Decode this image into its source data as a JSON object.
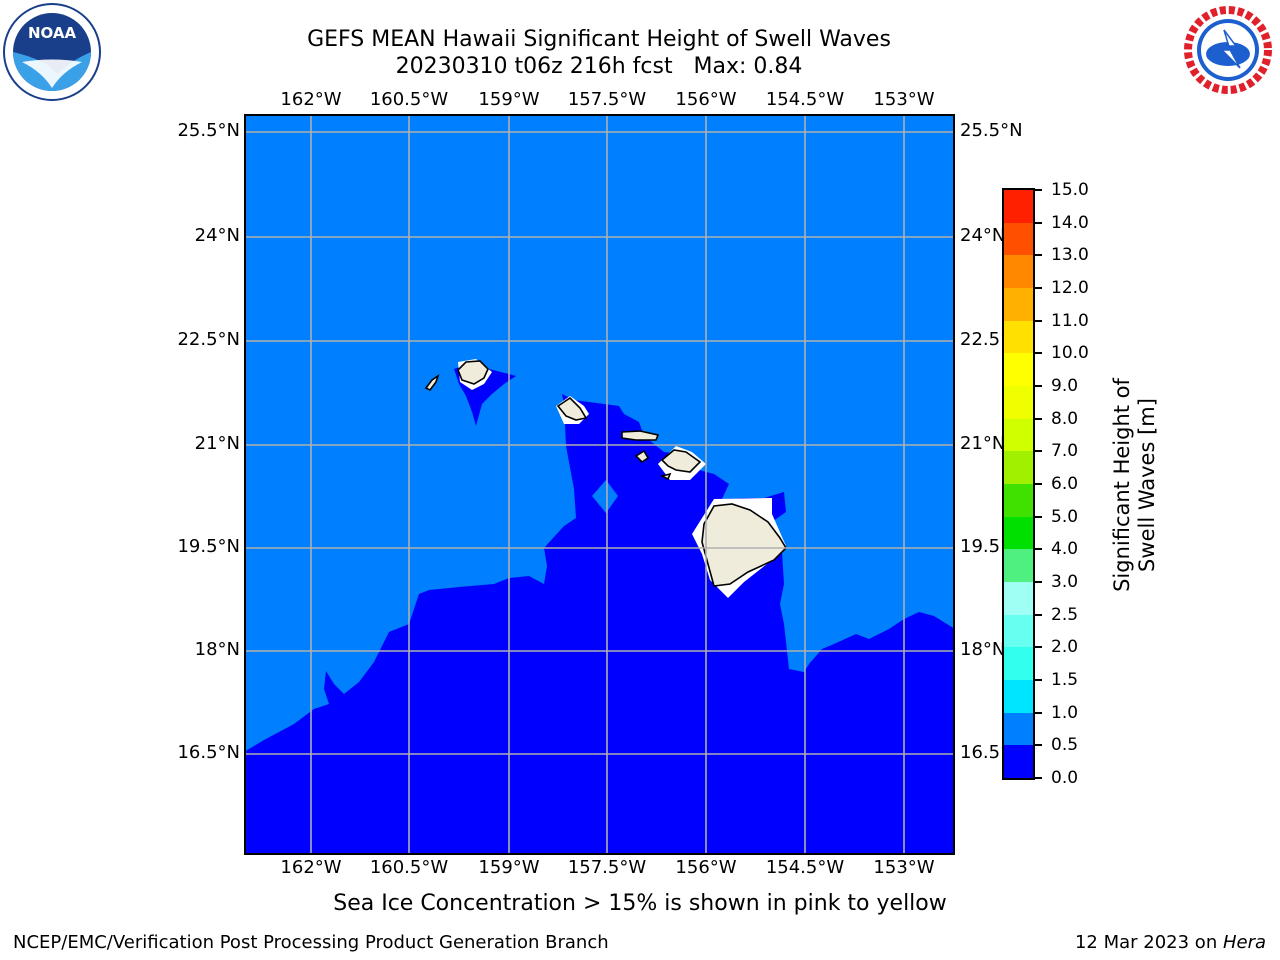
{
  "title": {
    "line1": "GEFS MEAN Hawaii Significant Height of Swell Waves",
    "line2": "20230310 t06z 216h fcst   Max: 0.84"
  },
  "map": {
    "lon_labels": [
      "162°W",
      "160.5°W",
      "159°W",
      "157.5°W",
      "156°W",
      "154.5°W",
      "153°W"
    ],
    "lat_labels": [
      "25.5°N",
      "24°N",
      "22.5°N",
      "21°N",
      "19.5°N",
      "18°N",
      "16.5°N"
    ],
    "colors": {
      "ocean_low": "#0000ff",
      "ocean_mid": "#0080ff",
      "land": "#f0ecdc",
      "grid": "#b0b0b0"
    }
  },
  "colorbar": {
    "label": "Significant Height of Swell Waves [m]",
    "ticks": [
      "0.0",
      "0.5",
      "1.0",
      "1.5",
      "2.0",
      "2.5",
      "3.0",
      "4.0",
      "5.0",
      "6.0",
      "7.0",
      "8.0",
      "9.0",
      "10.0",
      "11.0",
      "12.0",
      "13.0",
      "14.0",
      "15.0"
    ],
    "colors": [
      "#0000ff",
      "#0080ff",
      "#00e5ff",
      "#33ffee",
      "#66fff0",
      "#a0fff5",
      "#50f080",
      "#00e000",
      "#40e000",
      "#a0f000",
      "#d0ff00",
      "#f0ff00",
      "#ffff00",
      "#ffe000",
      "#ffb000",
      "#ff8800",
      "#ff5000",
      "#ff2000",
      "#ff0000"
    ]
  },
  "caption": "Sea Ice Concentration > 15% is shown in pink to yellow",
  "footer": {
    "left": "NCEP/EMC/Verification Post Processing Product Generation Branch",
    "date": "12 Mar 2023 on ",
    "host": "Hera"
  },
  "logos": {
    "noaa": "NOAA",
    "nws": "NATIONAL WEATHER SERVICE"
  }
}
